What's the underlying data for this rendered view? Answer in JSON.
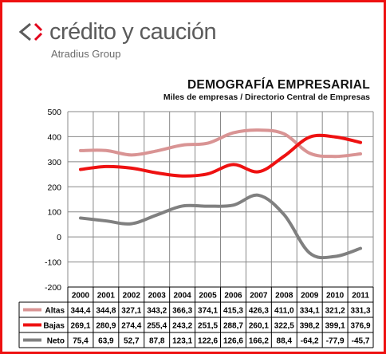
{
  "brand": {
    "name": "crédito y caución",
    "group": "Atradius Group",
    "mark_colors": [
      "#5b5b5b",
      "#e2001a"
    ]
  },
  "chart_data": {
    "type": "line",
    "title": "DEMOGRAFÍA EMPRESARIAL",
    "subtitle": "Miles de empresas / Directorio Central de Empresas",
    "categories": [
      "2000",
      "2001",
      "2002",
      "2003",
      "2004",
      "2005",
      "2006",
      "2007",
      "2008",
      "2009",
      "2010",
      "2011"
    ],
    "ylim": [
      -200,
      500
    ],
    "yticks": [
      -200,
      -100,
      0,
      100,
      200,
      300,
      400,
      500
    ],
    "grid": true,
    "legend": "data-table",
    "series": [
      {
        "name": "Altas",
        "color": "#d99494",
        "values": [
          344.4,
          344.8,
          327.1,
          343.2,
          366.3,
          374.1,
          415.3,
          426.3,
          411.0,
          334.1,
          321.2,
          331.3
        ],
        "labels": [
          "344,4",
          "344,8",
          "327,1",
          "343,2",
          "366,3",
          "374,1",
          "415,3",
          "426,3",
          "411,0",
          "334,1",
          "321,2",
          "331,3"
        ]
      },
      {
        "name": "Bajas",
        "color": "#ee1111",
        "values": [
          269.1,
          280.9,
          274.4,
          255.4,
          243.2,
          251.5,
          288.7,
          260.1,
          322.5,
          398.2,
          399.1,
          376.9
        ],
        "labels": [
          "269,1",
          "280,9",
          "274,4",
          "255,4",
          "243,2",
          "251,5",
          "288,7",
          "260,1",
          "322,5",
          "398,2",
          "399,1",
          "376,9"
        ]
      },
      {
        "name": "Neto",
        "color": "#808080",
        "values": [
          75.4,
          63.9,
          52.7,
          87.8,
          123.1,
          122.6,
          126.6,
          166.2,
          88.4,
          -64.2,
          -77.9,
          -45.7
        ],
        "labels": [
          "75,4",
          "63,9",
          "52,7",
          "87,8",
          "123,1",
          "122,6",
          "126,6",
          "166,2",
          "88,4",
          "-64,2",
          "-77,9",
          "-45,7"
        ]
      }
    ]
  }
}
